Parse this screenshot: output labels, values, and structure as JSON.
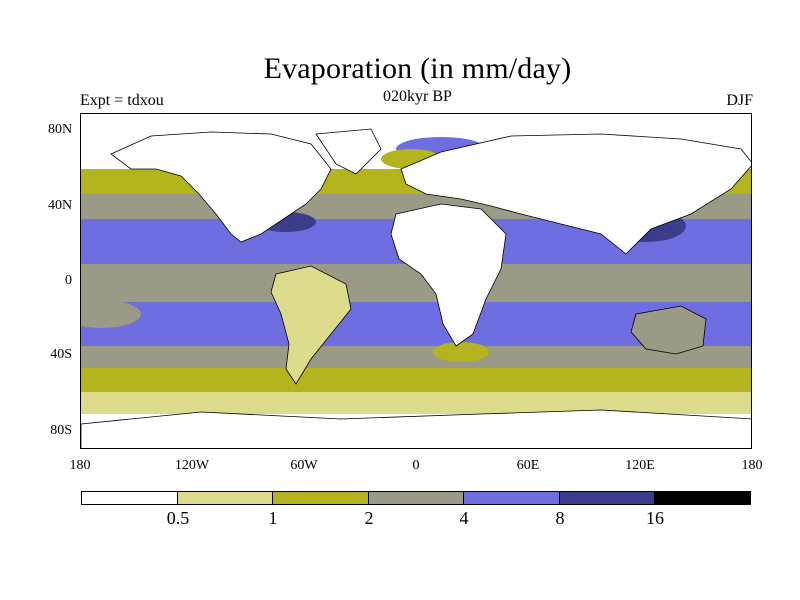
{
  "title": "Evaporation (in mm/day)",
  "subtitle": "020kyr BP",
  "experiment": "Expt = tdxou",
  "season": "DJF",
  "lat_labels": [
    "80N",
    "40N",
    "0",
    "40S",
    "80S"
  ],
  "lon_labels": [
    "180",
    "120W",
    "60W",
    "0",
    "60E",
    "120E",
    "180"
  ],
  "colorbar": {
    "labels": [
      "0.5",
      "1",
      "2",
      "4",
      "8",
      "16"
    ],
    "colors": [
      "#ffffff",
      "#dcdc8c",
      "#b4b41e",
      "#9b9a86",
      "#6e6ee0",
      "#3c3c8c",
      "#000000"
    ]
  }
}
